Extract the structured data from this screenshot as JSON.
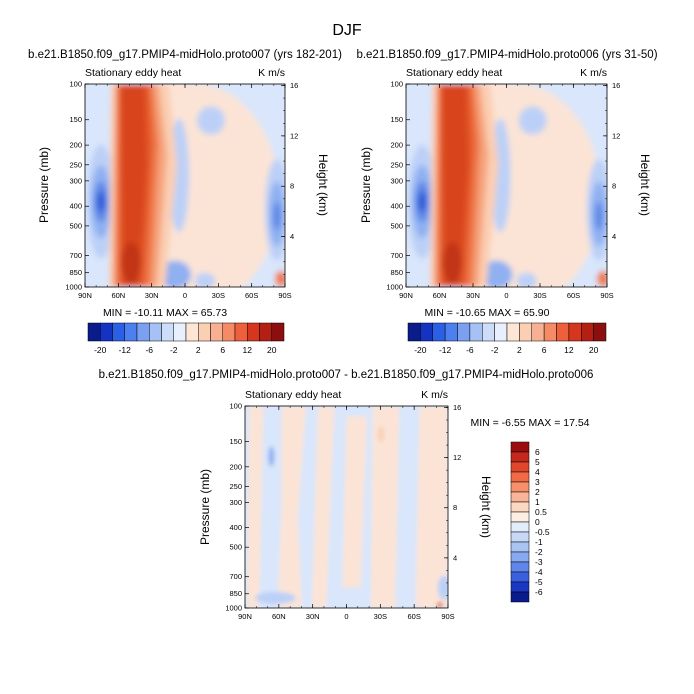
{
  "page": {
    "title": "DJF"
  },
  "panels": [
    {
      "title": "b.e21.B1850.f09_g17.PMIP4-midHolo.proto007 (yrs 182-201)",
      "left_label": "Stationary eddy heat",
      "right_label": "K m/s",
      "ylabel": "Pressure (mb)",
      "y2label": "Height (km)",
      "minmax": "MIN = -10.11   MAX = 65.73"
    },
    {
      "title": "b.e21.B1850.f09_g17.PMIP4-midHolo.proto006 (yrs 31-50)",
      "left_label": "Stationary eddy heat",
      "right_label": "K m/s",
      "ylabel": "Pressure (mb)",
      "y2label": "Height (km)",
      "minmax": "MIN = -10.65   MAX = 65.90"
    },
    {
      "title": "b.e21.B1850.f09_g17.PMIP4-midHolo.proto007 - b.e21.B1850.f09_g17.PMIP4-midHolo.proto006",
      "left_label": "Stationary eddy heat",
      "right_label": "K m/s",
      "ylabel": "Pressure (mb)",
      "y2label": "Height (km)",
      "minmax": "MIN = -6.55   MAX = 17.54"
    }
  ],
  "chart_data": [
    {
      "type": "heatmap",
      "x_ticks": [
        "90N",
        "60N",
        "30N",
        "0",
        "30S",
        "60S",
        "90S"
      ],
      "y_ticks": [
        "100",
        "150",
        "200",
        "250",
        "300",
        "400",
        "500",
        "700",
        "850",
        "1000"
      ],
      "y2_ticks": [
        "4",
        "8",
        "12",
        "16"
      ],
      "y_scale": "log",
      "ylim": [
        1000,
        100
      ]
    },
    {
      "type": "heatmap",
      "x_ticks": [
        "90N",
        "60N",
        "30N",
        "0",
        "30S",
        "60S",
        "90S"
      ],
      "y_ticks": [
        "100",
        "150",
        "200",
        "250",
        "300",
        "400",
        "500",
        "700",
        "850",
        "1000"
      ],
      "y2_ticks": [
        "4",
        "8",
        "12",
        "16"
      ],
      "y_scale": "log",
      "ylim": [
        1000,
        100
      ]
    },
    {
      "type": "heatmap",
      "x_ticks": [
        "90N",
        "60N",
        "30N",
        "0",
        "30S",
        "60S",
        "90S"
      ],
      "y_ticks": [
        "100",
        "150",
        "200",
        "250",
        "300",
        "400",
        "500",
        "700",
        "850",
        "1000"
      ],
      "y2_ticks": [
        "4",
        "8",
        "12",
        "16"
      ],
      "y_scale": "log",
      "ylim": [
        1000,
        100
      ]
    }
  ],
  "colorbar_main": {
    "labels": [
      "-20",
      "-12",
      "-6",
      "-2",
      "2",
      "6",
      "12",
      "20"
    ],
    "colors": [
      "#0a1c8c",
      "#1433c2",
      "#2b5fe6",
      "#4c80f0",
      "#7aa0f2",
      "#a6c1f6",
      "#cddcf9",
      "#e9f0fd",
      "#fde6d6",
      "#fbcfb4",
      "#f8b092",
      "#f48a66",
      "#ee5f3b",
      "#d6361e",
      "#b41f14",
      "#8c0f0f"
    ]
  },
  "colorbar_diff": {
    "labels": [
      "6",
      "5",
      "4",
      "3",
      "2",
      "1",
      "0.5",
      "0",
      "-0.5",
      "-1",
      "-2",
      "-3",
      "-4",
      "-5",
      "-6"
    ],
    "colors": [
      "#9a0e10",
      "#c5281c",
      "#e0462c",
      "#f06a45",
      "#f78f6a",
      "#f9b597",
      "#fcd8c3",
      "#fdeee4",
      "#e3ecfb",
      "#c8d9f8",
      "#a9c3f3",
      "#87a9ef",
      "#5f86ea",
      "#3a60df",
      "#1a37c4",
      "#0a1b90"
    ]
  },
  "field_colors": {
    "bg": "#d9e6fb",
    "warm_light": "#fbe4d6",
    "b1": "#bcd0f7",
    "b2": "#8fb0f1",
    "b3": "#5f88e6",
    "b4": "#2f5bd7",
    "r1": "#fbceb2",
    "r2": "#f6a47e",
    "r3": "#ef7a4c",
    "r4": "#e55a2a",
    "r5": "#d8441c",
    "r6": "#c23414"
  }
}
